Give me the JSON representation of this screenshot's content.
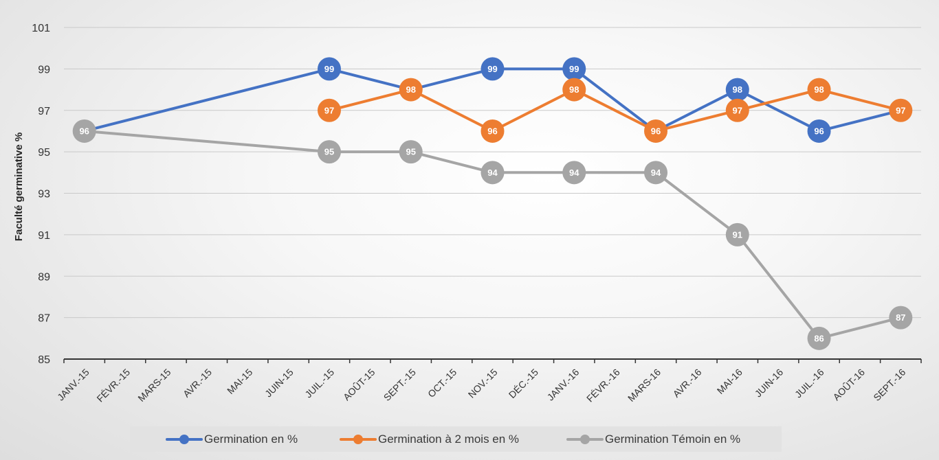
{
  "chart_data": {
    "type": "line",
    "ylabel": "Faculté germinative %",
    "xlabel": "",
    "ylim": [
      85,
      101
    ],
    "yticks": [
      85,
      87,
      89,
      91,
      93,
      95,
      97,
      99,
      101
    ],
    "categories": [
      "JANV.-15",
      "FÉVR.-15",
      "MARS-15",
      "AVR.-15",
      "MAI-15",
      "JUIN-15",
      "JUIL.-15",
      "AOÛT-15",
      "SEPT.-15",
      "OCT.-15",
      "NOV.-15",
      "DÉC.-15",
      "JANV.-16",
      "FÉVR.-16",
      "MARS-16",
      "AVR.-16",
      "MAI-16",
      "JUIN-16",
      "JUIL.-16",
      "AOÛT-16",
      "SEPT.-16"
    ],
    "grid": true,
    "legend_position": "bottom",
    "data_labels": true,
    "series": [
      {
        "name": "Germination en %",
        "color": "#4472C4",
        "values": [
          96,
          null,
          null,
          null,
          null,
          null,
          99,
          null,
          98,
          null,
          99,
          null,
          99,
          null,
          96,
          null,
          98,
          null,
          96,
          null,
          97
        ],
        "labeled": [
          false,
          false,
          false,
          false,
          false,
          false,
          true,
          false,
          false,
          false,
          true,
          false,
          true,
          false,
          false,
          false,
          true,
          false,
          true,
          false,
          false
        ]
      },
      {
        "name": "Germination à  2 mois en %",
        "color": "#ED7D31",
        "values": [
          null,
          null,
          null,
          null,
          null,
          null,
          97,
          null,
          98,
          null,
          96,
          null,
          98,
          null,
          96,
          null,
          97,
          null,
          98,
          null,
          97
        ],
        "labeled": [
          false,
          false,
          false,
          false,
          false,
          false,
          true,
          false,
          true,
          false,
          true,
          false,
          true,
          false,
          true,
          false,
          true,
          false,
          true,
          false,
          true
        ]
      },
      {
        "name": "Germination Témoin en %",
        "color": "#A5A5A5",
        "values": [
          96,
          null,
          null,
          null,
          null,
          null,
          95,
          null,
          95,
          null,
          94,
          null,
          94,
          null,
          94,
          null,
          91,
          null,
          86,
          null,
          87
        ],
        "labeled": [
          true,
          false,
          false,
          false,
          false,
          false,
          true,
          false,
          true,
          false,
          true,
          false,
          true,
          false,
          true,
          false,
          true,
          false,
          true,
          false,
          true
        ]
      }
    ]
  },
  "legend": {
    "items": [
      {
        "label": "Germination en %",
        "color": "#4472C4"
      },
      {
        "label": "Germination à  2 mois en %",
        "color": "#ED7D31"
      },
      {
        "label": "Germination Témoin en %",
        "color": "#A5A5A5"
      }
    ]
  }
}
